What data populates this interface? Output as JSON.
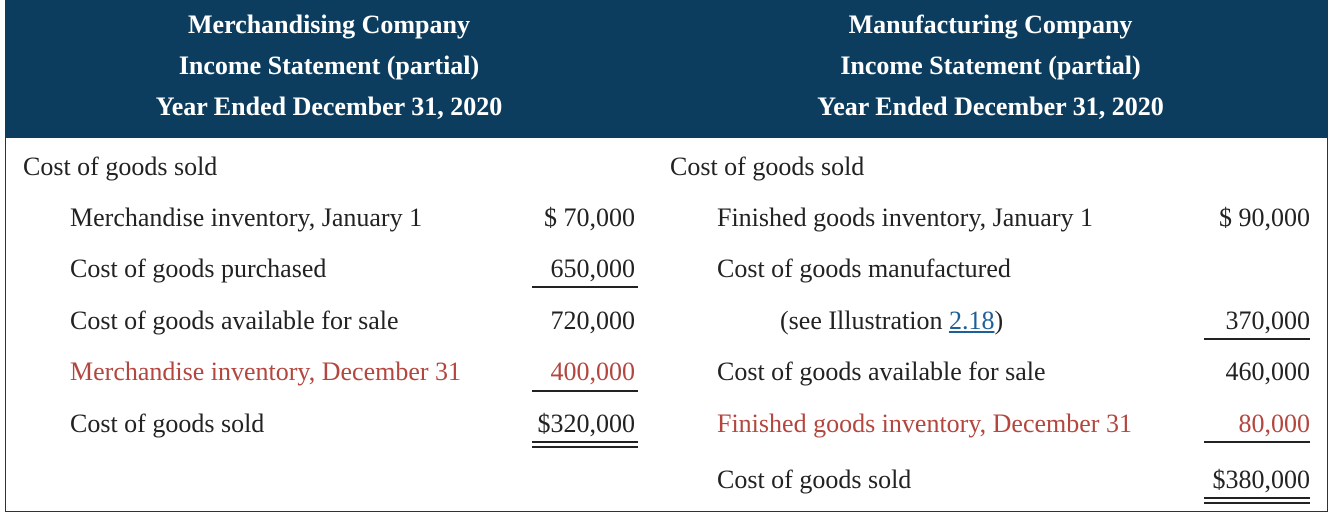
{
  "merch": {
    "title": [
      "Merchandising Company",
      "Income Statement (partial)",
      "Year Ended December 31, 2020"
    ],
    "section": "Cost of goods sold",
    "rows": [
      {
        "label": "Merchandise inventory, January 1",
        "amount": "$  70,000"
      },
      {
        "label": "Cost of goods purchased",
        "amount": "650,000"
      },
      {
        "label": "Cost of goods available for sale",
        "amount": "720,000"
      },
      {
        "label": "Merchandise inventory, December 31",
        "amount": "400,000"
      },
      {
        "label": "Cost of goods sold",
        "amount": "$320,000"
      }
    ]
  },
  "manuf": {
    "title": [
      "Manufacturing Company",
      "Income Statement (partial)",
      "Year Ended December 31, 2020"
    ],
    "section": "Cost of goods sold",
    "rows": [
      {
        "label": "Finished goods inventory, January 1",
        "amount": "$  90,000"
      },
      {
        "label": "Cost of goods manufactured",
        "amount": ""
      },
      {
        "label_pre": "(see Illustration ",
        "link": "2.18",
        "label_post": ")",
        "amount": "370,000"
      },
      {
        "label": "Cost of goods available for sale",
        "amount": "460,000"
      },
      {
        "label": "Finished goods inventory, December 31",
        "amount": "80,000"
      },
      {
        "label": "Cost of goods sold",
        "amount": "$380,000"
      }
    ]
  },
  "colors": {
    "header_bg": "#0d3d5e",
    "highlight": "#b3473f",
    "link": "#1f5f99"
  }
}
